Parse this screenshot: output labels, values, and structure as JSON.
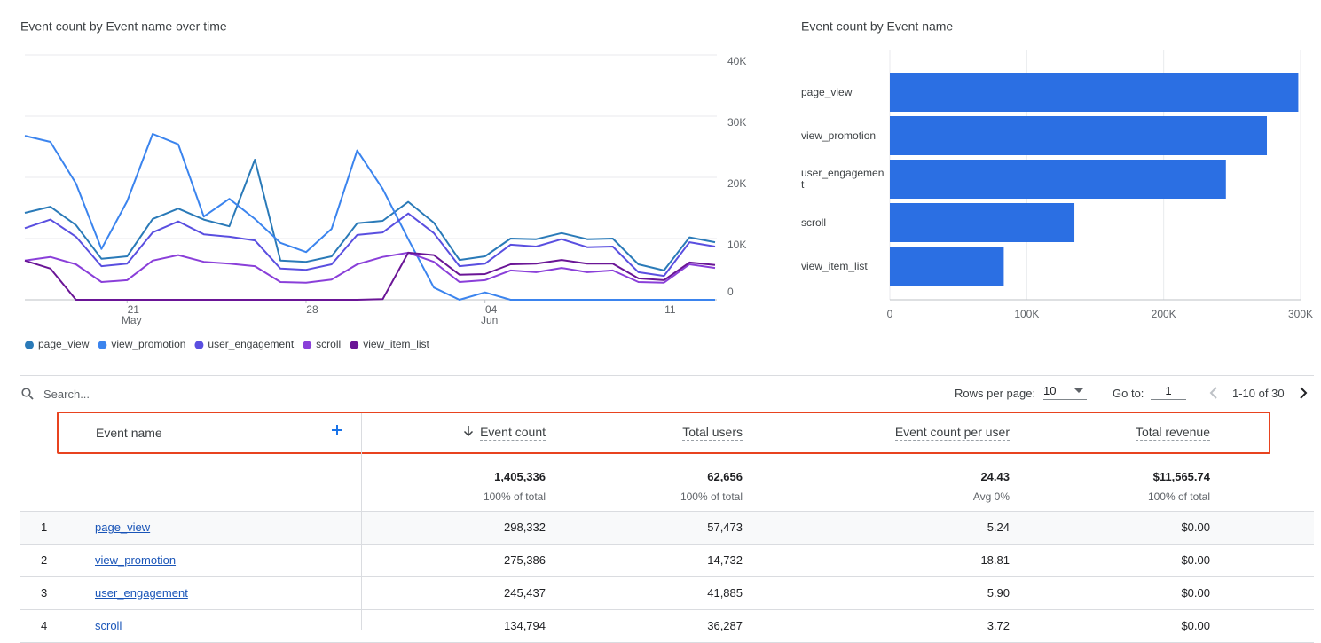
{
  "chart_data": [
    {
      "type": "line",
      "title": "Event count by Event name over time",
      "categories": [
        null,
        null,
        null,
        null,
        "21",
        null,
        null,
        null,
        null,
        null,
        null,
        "28",
        null,
        null,
        null,
        null,
        null,
        null,
        "04",
        null,
        null,
        null,
        null,
        null,
        null,
        "11",
        null,
        null
      ],
      "category_months": [
        null,
        null,
        null,
        null,
        "May",
        null,
        null,
        null,
        null,
        null,
        null,
        null,
        null,
        null,
        null,
        null,
        null,
        null,
        "Jun",
        null,
        null,
        null,
        null,
        null,
        null,
        null,
        null,
        null
      ],
      "ylim": [
        0,
        40000
      ],
      "yticks": [
        0,
        {
          "value": 10000,
          "label": "10K"
        },
        {
          "value": 20000,
          "label": "20K"
        },
        {
          "value": 30000,
          "label": "30K"
        },
        {
          "value": 40000,
          "label": "40K"
        }
      ],
      "grid": true,
      "series": [
        {
          "name": "page_view",
          "color": "#2a7ab8",
          "values": [
            14200,
            15200,
            12200,
            6700,
            7100,
            13200,
            14900,
            13100,
            12000,
            22900,
            6400,
            6200,
            7100,
            12500,
            12900,
            16000,
            12600,
            6500,
            7100,
            10000,
            9900,
            10900,
            9900,
            10000,
            5800,
            4800,
            10200,
            9400
          ]
        },
        {
          "name": "view_promotion",
          "color": "#3b84ee",
          "values": [
            26800,
            25800,
            19000,
            8300,
            16100,
            27100,
            25400,
            13600,
            16500,
            13200,
            9300,
            7800,
            11600,
            24400,
            18100,
            9900,
            2000,
            0,
            1200,
            0,
            0,
            0,
            0,
            0,
            0,
            0,
            0,
            0
          ]
        },
        {
          "name": "user_engagement",
          "color": "#5a4fe0",
          "values": [
            11700,
            13100,
            10300,
            5500,
            5900,
            11000,
            12800,
            10700,
            10300,
            9700,
            5100,
            4900,
            5800,
            10600,
            11000,
            14100,
            10900,
            5500,
            5900,
            9000,
            8700,
            9900,
            8600,
            8700,
            4500,
            3900,
            9400,
            8700
          ]
        },
        {
          "name": "scroll",
          "color": "#8a3fd9",
          "values": [
            6400,
            7000,
            5800,
            2900,
            3200,
            6400,
            7300,
            6200,
            5900,
            5500,
            2900,
            2800,
            3300,
            5800,
            7000,
            7700,
            6200,
            2900,
            3200,
            4800,
            4500,
            5200,
            4500,
            4800,
            2900,
            2800,
            5800,
            5200
          ]
        },
        {
          "name": "view_item_list",
          "color": "#6a1596",
          "values": [
            6400,
            5100,
            0,
            0,
            0,
            0,
            0,
            0,
            0,
            0,
            0,
            0,
            0,
            0,
            100,
            7700,
            7300,
            4100,
            4200,
            5800,
            5900,
            6500,
            5900,
            5900,
            3500,
            3200,
            6100,
            5700
          ]
        }
      ]
    },
    {
      "type": "bar",
      "title": "Event count by Event name",
      "categories": [
        "page_view",
        "view_promotion",
        "user_engagement",
        "scroll",
        "view_item_list"
      ],
      "values": [
        298332,
        275386,
        245437,
        134794,
        83200
      ],
      "color": "#2b6fe3",
      "xlim": [
        0,
        300000
      ],
      "xticks": [
        0,
        {
          "value": 100000,
          "label": "100K"
        },
        {
          "value": 200000,
          "label": "200K"
        },
        {
          "value": 300000,
          "label": "300K"
        }
      ],
      "grid": true
    }
  ],
  "toolbar": {
    "search_placeholder": "Search...",
    "rows_per_page_label": "Rows per page:",
    "rows_per_page": "10",
    "go_to_label": "Go to:",
    "go_to": "1",
    "range": "1-10 of 30"
  },
  "table": {
    "columns": [
      "Event name",
      "Event count",
      "Total users",
      "Event count per user",
      "Total revenue"
    ],
    "totals": [
      [
        "1,405,336",
        "100% of total"
      ],
      [
        "62,656",
        "100% of total"
      ],
      [
        "24.43",
        "Avg 0%"
      ],
      [
        "$11,565.74",
        "100% of total"
      ]
    ],
    "rows": [
      [
        "1",
        "page_view",
        "298,332",
        "57,473",
        "5.24",
        "$0.00"
      ],
      [
        "2",
        "view_promotion",
        "275,386",
        "14,732",
        "18.81",
        "$0.00"
      ],
      [
        "3",
        "user_engagement",
        "245,437",
        "41,885",
        "5.90",
        "$0.00"
      ],
      [
        "4",
        "scroll",
        "134,794",
        "36,287",
        "3.72",
        "$0.00"
      ]
    ]
  }
}
